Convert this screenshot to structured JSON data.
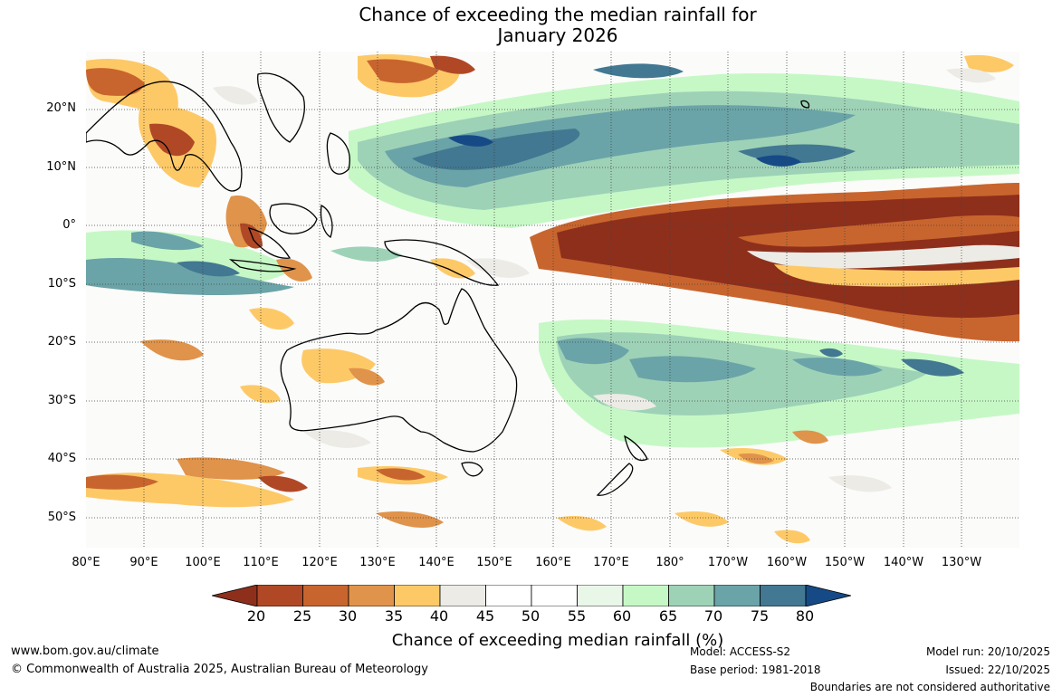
{
  "title": {
    "line1": "Chance of exceeding the median rainfall for",
    "line2": "January 2026"
  },
  "map": {
    "lat_labels": [
      "20°N",
      "10°N",
      "0°",
      "10°S",
      "20°S",
      "30°S",
      "40°S",
      "50°S"
    ],
    "lon_labels": [
      "80°E",
      "90°E",
      "100°E",
      "110°E",
      "120°E",
      "130°E",
      "140°E",
      "150°E",
      "160°E",
      "170°E",
      "180°",
      "170°W",
      "160°W",
      "150°W",
      "140°W",
      "130°W"
    ]
  },
  "colorbar": {
    "ticks": [
      "20",
      "25",
      "30",
      "35",
      "40",
      "45",
      "50",
      "55",
      "60",
      "65",
      "70",
      "75",
      "80"
    ],
    "colors": [
      "#8e2f1c",
      "#b04826",
      "#c8652e",
      "#e0934a",
      "#fdc967",
      "#ecebe6",
      "#ffffff",
      "#ffffff",
      "#e9f7e9",
      "#c6f8c6",
      "#9ed2b7",
      "#6aa4a8",
      "#427891",
      "#164a86"
    ],
    "label": "Chance of exceeding median rainfall (%)"
  },
  "footer": {
    "website": "www.bom.gov.au/climate",
    "copyright": "© Commonwealth of Australia 2025, Australian Bureau of Meteorology",
    "model": "Model: ACCESS-S2",
    "base_period": "Base period: 1981-2018",
    "model_run": "Model run: 20/10/2025",
    "issued": "Issued: 22/10/2025",
    "disclaimer": "Boundaries are not considered authoritative"
  }
}
